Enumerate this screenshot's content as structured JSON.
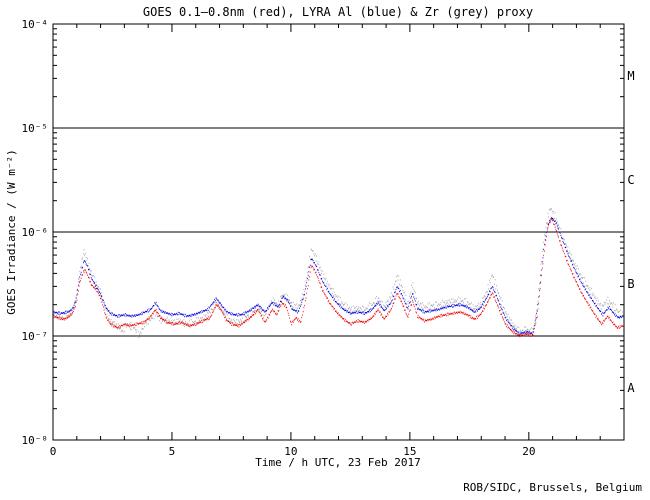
{
  "chart": {
    "title": "GOES 0.1–0.8nm (red), LYRA Al (blue) & Zr (grey) proxy",
    "xlabel": "Time / h UTC, 23 Feb 2017",
    "ylabel": "GOES Irradiance / (W m⁻²)",
    "credit": "ROB/SIDC, Brussels, Belgium",
    "x_tick_labels": [
      "0",
      "5",
      "10",
      "15",
      "20"
    ],
    "y_tick_labels": [
      "10⁻⁴",
      "10⁻⁵",
      "10⁻⁶",
      "10⁻⁷",
      "10⁻⁸"
    ],
    "flare_class_labels": [
      "M",
      "C",
      "B",
      "A"
    ],
    "colors": {
      "goes_red": "#ee0000",
      "lyra_al_blue": "#0000dd",
      "lyra_zr_grey": "#a4a4a4",
      "frame": "#000000"
    }
  },
  "chart_data": {
    "type": "scatter",
    "title": "GOES 0.1-0.8nm (red), LYRA Al (blue) & Zr (grey) proxy",
    "xlabel": "Time / h UTC, 23 Feb 2017",
    "ylabel": "GOES Irradiance / (W m-2)",
    "x_unit": "hour UTC",
    "x_range": [
      0,
      24
    ],
    "x_major_ticks": [
      0,
      5,
      10,
      15,
      20
    ],
    "x_minor_tick_step_h": 1,
    "y_scale": "log",
    "y_range_w_m2": [
      1e-08,
      0.0001
    ],
    "y_major_ticks_w_m2": [
      0.0001,
      1e-05,
      1e-06,
      1e-07,
      1e-08
    ],
    "class_boundary_lines_w_m2": [
      1e-05,
      1e-06,
      1e-07
    ],
    "flare_class_bands": [
      {
        "label": "M",
        "range_w_m2": [
          1e-05,
          0.0001
        ]
      },
      {
        "label": "C",
        "range_w_m2": [
          1e-06,
          1e-05
        ]
      },
      {
        "label": "B",
        "range_w_m2": [
          1e-07,
          1e-06
        ]
      },
      {
        "label": "A",
        "range_w_m2": [
          1e-08,
          1e-07
        ]
      }
    ],
    "grid": false,
    "legend": "in title (colors named)",
    "values_unit": "1e-7 W m-2",
    "series": [
      {
        "name": "LYRA Zr proxy (grey)",
        "color": "#a4a4a4",
        "scatter_log_amp": 0.035,
        "points": [
          [
            0,
            1.6
          ],
          [
            0.3,
            1.5
          ],
          [
            0.6,
            1.55
          ],
          [
            0.8,
            1.75
          ],
          [
            0.95,
            2.3
          ],
          [
            1.1,
            4.0
          ],
          [
            1.28,
            6.6
          ],
          [
            1.45,
            5.2
          ],
          [
            1.6,
            4.0
          ],
          [
            1.8,
            3.2
          ],
          [
            2.0,
            2.6
          ],
          [
            2.2,
            1.8
          ],
          [
            2.4,
            1.4
          ],
          [
            2.7,
            1.25
          ],
          [
            2.9,
            1.1
          ],
          [
            3.1,
            1.3
          ],
          [
            3.4,
            1.2
          ],
          [
            3.6,
            1.0
          ],
          [
            3.85,
            1.3
          ],
          [
            4.1,
            1.45
          ],
          [
            4.3,
            1.65
          ],
          [
            4.5,
            1.45
          ],
          [
            4.8,
            1.4
          ],
          [
            5.0,
            1.35
          ],
          [
            5.3,
            1.4
          ],
          [
            5.6,
            1.3
          ],
          [
            5.9,
            1.35
          ],
          [
            6.2,
            1.45
          ],
          [
            6.5,
            1.6
          ],
          [
            6.85,
            2.1
          ],
          [
            7.05,
            1.85
          ],
          [
            7.3,
            1.5
          ],
          [
            7.6,
            1.35
          ],
          [
            7.9,
            1.4
          ],
          [
            8.15,
            1.55
          ],
          [
            8.4,
            1.7
          ],
          [
            8.6,
            1.9
          ],
          [
            8.9,
            1.6
          ],
          [
            9.2,
            2.2
          ],
          [
            9.45,
            2.0
          ],
          [
            9.65,
            2.5
          ],
          [
            9.85,
            2.3
          ],
          [
            10.05,
            2.0
          ],
          [
            10.3,
            1.9
          ],
          [
            10.55,
            2.7
          ],
          [
            10.85,
            6.9
          ],
          [
            11.05,
            5.6
          ],
          [
            11.3,
            4.0
          ],
          [
            11.6,
            3.0
          ],
          [
            11.9,
            2.4
          ],
          [
            12.2,
            2.0
          ],
          [
            12.5,
            1.8
          ],
          [
            12.8,
            1.85
          ],
          [
            13.1,
            1.8
          ],
          [
            13.4,
            2.0
          ],
          [
            13.65,
            2.3
          ],
          [
            13.9,
            1.9
          ],
          [
            14.2,
            2.4
          ],
          [
            14.45,
            3.8
          ],
          [
            14.65,
            3.0
          ],
          [
            14.9,
            2.0
          ],
          [
            15.1,
            3.2
          ],
          [
            15.3,
            2.1
          ],
          [
            15.6,
            1.9
          ],
          [
            15.9,
            1.95
          ],
          [
            16.2,
            2.0
          ],
          [
            16.5,
            2.1
          ],
          [
            16.8,
            2.15
          ],
          [
            17.1,
            2.2
          ],
          [
            17.4,
            2.1
          ],
          [
            17.7,
            1.85
          ],
          [
            17.95,
            2.0
          ],
          [
            18.2,
            2.6
          ],
          [
            18.45,
            3.9
          ],
          [
            18.7,
            2.6
          ],
          [
            19.0,
            1.7
          ],
          [
            19.3,
            1.3
          ],
          [
            19.6,
            1.1
          ],
          [
            19.9,
            1.15
          ],
          [
            20.15,
            1.1
          ],
          [
            20.35,
            2.0
          ],
          [
            20.5,
            5.0
          ],
          [
            20.65,
            9.5
          ],
          [
            20.8,
            14.5
          ],
          [
            20.9,
            17.0
          ],
          [
            21.1,
            14.0
          ],
          [
            21.3,
            10.5
          ],
          [
            21.6,
            7.0
          ],
          [
            21.9,
            5.0
          ],
          [
            22.2,
            3.7
          ],
          [
            22.5,
            2.9
          ],
          [
            22.8,
            2.3
          ],
          [
            23.05,
            1.9
          ],
          [
            23.3,
            2.2
          ],
          [
            23.55,
            1.95
          ],
          [
            23.75,
            1.7
          ],
          [
            23.95,
            1.6
          ]
        ]
      },
      {
        "name": "LYRA Al proxy (blue)",
        "color": "#0000dd",
        "scatter_log_amp": 0.012,
        "points": [
          [
            0,
            1.7
          ],
          [
            0.3,
            1.65
          ],
          [
            0.6,
            1.7
          ],
          [
            0.8,
            1.8
          ],
          [
            0.95,
            2.2
          ],
          [
            1.1,
            3.6
          ],
          [
            1.3,
            5.4
          ],
          [
            1.45,
            4.6
          ],
          [
            1.6,
            3.6
          ],
          [
            1.8,
            3.0
          ],
          [
            2.0,
            2.5
          ],
          [
            2.2,
            1.9
          ],
          [
            2.4,
            1.65
          ],
          [
            2.7,
            1.55
          ],
          [
            3.0,
            1.6
          ],
          [
            3.3,
            1.55
          ],
          [
            3.6,
            1.6
          ],
          [
            3.85,
            1.7
          ],
          [
            4.1,
            1.8
          ],
          [
            4.3,
            2.1
          ],
          [
            4.5,
            1.75
          ],
          [
            4.8,
            1.65
          ],
          [
            5.0,
            1.6
          ],
          [
            5.3,
            1.65
          ],
          [
            5.6,
            1.55
          ],
          [
            5.9,
            1.6
          ],
          [
            6.2,
            1.7
          ],
          [
            6.5,
            1.8
          ],
          [
            6.85,
            2.3
          ],
          [
            7.05,
            2.0
          ],
          [
            7.3,
            1.7
          ],
          [
            7.6,
            1.6
          ],
          [
            7.9,
            1.6
          ],
          [
            8.15,
            1.7
          ],
          [
            8.4,
            1.85
          ],
          [
            8.6,
            2.0
          ],
          [
            8.9,
            1.7
          ],
          [
            9.2,
            2.1
          ],
          [
            9.45,
            1.9
          ],
          [
            9.65,
            2.4
          ],
          [
            9.85,
            2.2
          ],
          [
            10.05,
            1.8
          ],
          [
            10.3,
            1.7
          ],
          [
            10.55,
            2.5
          ],
          [
            10.85,
            5.6
          ],
          [
            11.05,
            4.7
          ],
          [
            11.3,
            3.4
          ],
          [
            11.6,
            2.6
          ],
          [
            11.9,
            2.1
          ],
          [
            12.2,
            1.8
          ],
          [
            12.5,
            1.65
          ],
          [
            12.8,
            1.7
          ],
          [
            13.1,
            1.65
          ],
          [
            13.4,
            1.8
          ],
          [
            13.65,
            2.1
          ],
          [
            13.9,
            1.75
          ],
          [
            14.2,
            2.1
          ],
          [
            14.45,
            3.0
          ],
          [
            14.65,
            2.5
          ],
          [
            14.9,
            1.8
          ],
          [
            15.1,
            2.6
          ],
          [
            15.3,
            1.85
          ],
          [
            15.6,
            1.7
          ],
          [
            15.9,
            1.75
          ],
          [
            16.2,
            1.8
          ],
          [
            16.5,
            1.9
          ],
          [
            16.8,
            1.95
          ],
          [
            17.1,
            2.0
          ],
          [
            17.4,
            1.9
          ],
          [
            17.7,
            1.7
          ],
          [
            17.95,
            1.85
          ],
          [
            18.2,
            2.3
          ],
          [
            18.45,
            3.0
          ],
          [
            18.7,
            2.2
          ],
          [
            19.0,
            1.5
          ],
          [
            19.3,
            1.2
          ],
          [
            19.6,
            1.05
          ],
          [
            19.9,
            1.1
          ],
          [
            20.15,
            1.05
          ],
          [
            20.35,
            1.8
          ],
          [
            20.5,
            4.0
          ],
          [
            20.65,
            8.0
          ],
          [
            20.8,
            12.0
          ],
          [
            20.95,
            13.8
          ],
          [
            21.15,
            12.0
          ],
          [
            21.35,
            9.0
          ],
          [
            21.65,
            6.0
          ],
          [
            21.95,
            4.2
          ],
          [
            22.25,
            3.1
          ],
          [
            22.55,
            2.4
          ],
          [
            22.85,
            1.9
          ],
          [
            23.1,
            1.6
          ],
          [
            23.35,
            1.9
          ],
          [
            23.55,
            1.65
          ],
          [
            23.75,
            1.5
          ],
          [
            23.95,
            1.55
          ]
        ]
      },
      {
        "name": "GOES 0.1-0.8nm (red)",
        "color": "#ee0000",
        "scatter_log_amp": 0.012,
        "points": [
          [
            0,
            1.55
          ],
          [
            0.2,
            1.5
          ],
          [
            0.4,
            1.45
          ],
          [
            0.6,
            1.5
          ],
          [
            0.8,
            1.65
          ],
          [
            0.95,
            2.0
          ],
          [
            1.1,
            3.2
          ],
          [
            1.25,
            4.1
          ],
          [
            1.35,
            4.3
          ],
          [
            1.45,
            3.8
          ],
          [
            1.6,
            3.1
          ],
          [
            1.8,
            2.8
          ],
          [
            2.0,
            2.3
          ],
          [
            2.2,
            1.55
          ],
          [
            2.4,
            1.3
          ],
          [
            2.7,
            1.2
          ],
          [
            3.0,
            1.3
          ],
          [
            3.2,
            1.25
          ],
          [
            3.5,
            1.3
          ],
          [
            3.8,
            1.35
          ],
          [
            4.1,
            1.55
          ],
          [
            4.3,
            1.8
          ],
          [
            4.5,
            1.5
          ],
          [
            4.8,
            1.35
          ],
          [
            5.1,
            1.3
          ],
          [
            5.4,
            1.35
          ],
          [
            5.7,
            1.25
          ],
          [
            6.0,
            1.3
          ],
          [
            6.3,
            1.4
          ],
          [
            6.6,
            1.5
          ],
          [
            6.85,
            2.0
          ],
          [
            7.05,
            1.8
          ],
          [
            7.25,
            1.45
          ],
          [
            7.5,
            1.3
          ],
          [
            7.8,
            1.25
          ],
          [
            8.1,
            1.4
          ],
          [
            8.35,
            1.55
          ],
          [
            8.6,
            1.8
          ],
          [
            8.9,
            1.35
          ],
          [
            9.2,
            1.8
          ],
          [
            9.4,
            1.6
          ],
          [
            9.6,
            2.1
          ],
          [
            9.8,
            1.9
          ],
          [
            10.0,
            1.3
          ],
          [
            10.2,
            1.5
          ],
          [
            10.4,
            1.35
          ],
          [
            10.6,
            2.2
          ],
          [
            10.85,
            4.8
          ],
          [
            11.05,
            4.0
          ],
          [
            11.3,
            2.8
          ],
          [
            11.6,
            2.1
          ],
          [
            11.9,
            1.7
          ],
          [
            12.2,
            1.45
          ],
          [
            12.5,
            1.3
          ],
          [
            12.8,
            1.4
          ],
          [
            13.1,
            1.35
          ],
          [
            13.4,
            1.5
          ],
          [
            13.65,
            1.8
          ],
          [
            13.9,
            1.45
          ],
          [
            14.2,
            1.8
          ],
          [
            14.45,
            2.6
          ],
          [
            14.65,
            2.1
          ],
          [
            14.9,
            1.5
          ],
          [
            15.1,
            2.2
          ],
          [
            15.3,
            1.55
          ],
          [
            15.6,
            1.4
          ],
          [
            15.9,
            1.45
          ],
          [
            16.2,
            1.55
          ],
          [
            16.5,
            1.6
          ],
          [
            16.8,
            1.65
          ],
          [
            17.1,
            1.7
          ],
          [
            17.4,
            1.6
          ],
          [
            17.7,
            1.45
          ],
          [
            17.95,
            1.6
          ],
          [
            18.2,
            2.0
          ],
          [
            18.45,
            2.6
          ],
          [
            18.7,
            1.9
          ],
          [
            19.0,
            1.3
          ],
          [
            19.3,
            1.1
          ],
          [
            19.6,
            1.0
          ],
          [
            19.9,
            1.05
          ],
          [
            20.15,
            1.0
          ],
          [
            20.35,
            1.6
          ],
          [
            20.5,
            3.5
          ],
          [
            20.65,
            7.0
          ],
          [
            20.8,
            11.5
          ],
          [
            20.95,
            13.5
          ],
          [
            21.1,
            11.0
          ],
          [
            21.3,
            8.0
          ],
          [
            21.6,
            5.2
          ],
          [
            21.9,
            3.6
          ],
          [
            22.2,
            2.6
          ],
          [
            22.5,
            2.0
          ],
          [
            22.8,
            1.55
          ],
          [
            23.05,
            1.3
          ],
          [
            23.3,
            1.55
          ],
          [
            23.5,
            1.35
          ],
          [
            23.7,
            1.2
          ],
          [
            23.95,
            1.25
          ]
        ]
      }
    ]
  }
}
